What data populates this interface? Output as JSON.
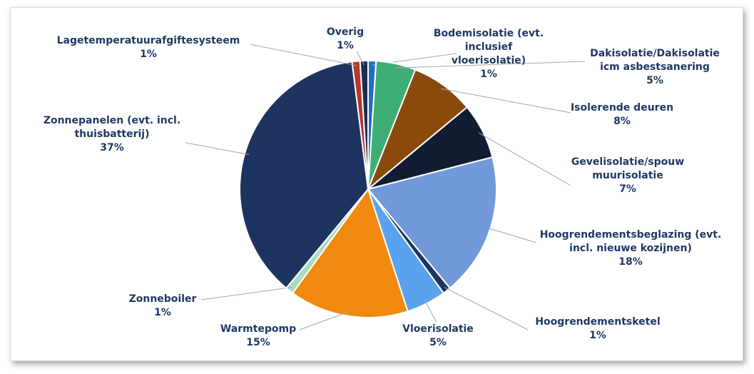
{
  "chart_data": {
    "type": "pie",
    "categories": [
      "Bodemisolatie (evt. inclusief vloerisolatie)",
      "Dakisolatie/Dakisolatie icm asbestsanering",
      "Isolerende deuren",
      "Gevelisolatie/spouw muurisolatie",
      "Hoogrendementsbeglazing (evt. incl. nieuwe kozijnen)",
      "Hoogrendementsketel",
      "Vloerisolatie",
      "Warmtepomp",
      "Zonneboiler",
      "Zonnepanelen (evt. incl. thuisbatterij)",
      "Lagetemperatuurafgiftesysteem",
      "Overig"
    ],
    "values": [
      1,
      5,
      8,
      7,
      18,
      1,
      5,
      15,
      1,
      37,
      1,
      1
    ],
    "value_labels": [
      "1%",
      "5%",
      "8%",
      "7%",
      "18%",
      "1%",
      "5%",
      "15%",
      "1%",
      "37%",
      "1%",
      "1%"
    ],
    "colors": [
      "#1f6fc5",
      "#3fae74",
      "#8a4a0c",
      "#121c33",
      "#7199d9",
      "#1c3560",
      "#5aa2ee",
      "#ef8a0e",
      "#a7dcc1",
      "#1d3461",
      "#b8372c",
      "#1f2c4d"
    ]
  }
}
